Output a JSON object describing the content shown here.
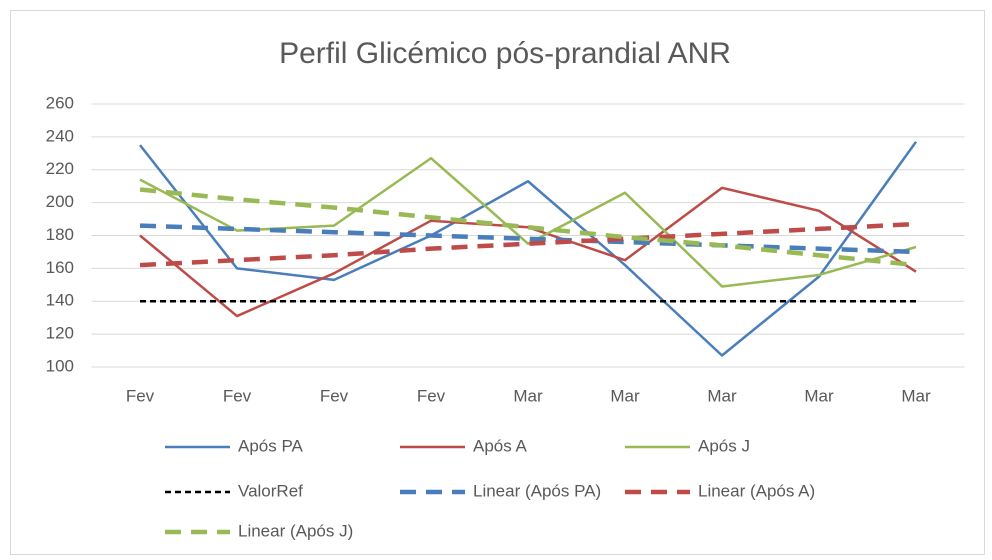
{
  "chart_data": {
    "type": "line",
    "title": "Perfil Glicémico pós-prandial ANR",
    "categories": [
      "Fev",
      "Fev",
      "Fev",
      "Fev",
      "Mar",
      "Mar",
      "Mar",
      "Mar",
      "Mar"
    ],
    "ylim": [
      100,
      260
    ],
    "yticks": [
      100,
      120,
      140,
      160,
      180,
      200,
      220,
      240,
      260
    ],
    "grid": true,
    "series": [
      {
        "name": "Após PA",
        "color": "#4a7ebb",
        "line_style": "solid",
        "values": [
          235,
          160,
          153,
          180,
          213,
          162,
          107,
          155,
          237
        ]
      },
      {
        "name": "Após A",
        "color": "#be4b48",
        "line_style": "solid",
        "values": [
          180,
          131,
          157,
          189,
          185,
          165,
          209,
          195,
          158
        ]
      },
      {
        "name": "Após J",
        "color": "#98b954",
        "line_style": "solid",
        "values": [
          214,
          183,
          186,
          227,
          175,
          206,
          149,
          156,
          173
        ]
      },
      {
        "name": "ValorRef",
        "color": "#000000",
        "line_style": "dotted",
        "values": [
          140,
          140,
          140,
          140,
          140,
          140,
          140,
          140,
          140
        ]
      },
      {
        "name": "Linear (Após PA)",
        "color": "#4a7ebb",
        "line_style": "dashed",
        "values": [
          186,
          184,
          182,
          180,
          178,
          176,
          174,
          172,
          170
        ]
      },
      {
        "name": "Linear (Após A)",
        "color": "#be4b48",
        "line_style": "dashed",
        "values": [
          162,
          165,
          168,
          172,
          175,
          178,
          181,
          184,
          187
        ]
      },
      {
        "name": "Linear (Após J)",
        "color": "#98b954",
        "line_style": "dashed",
        "values": [
          208,
          202,
          197,
          191,
          185,
          179,
          174,
          168,
          162
        ]
      }
    ]
  }
}
